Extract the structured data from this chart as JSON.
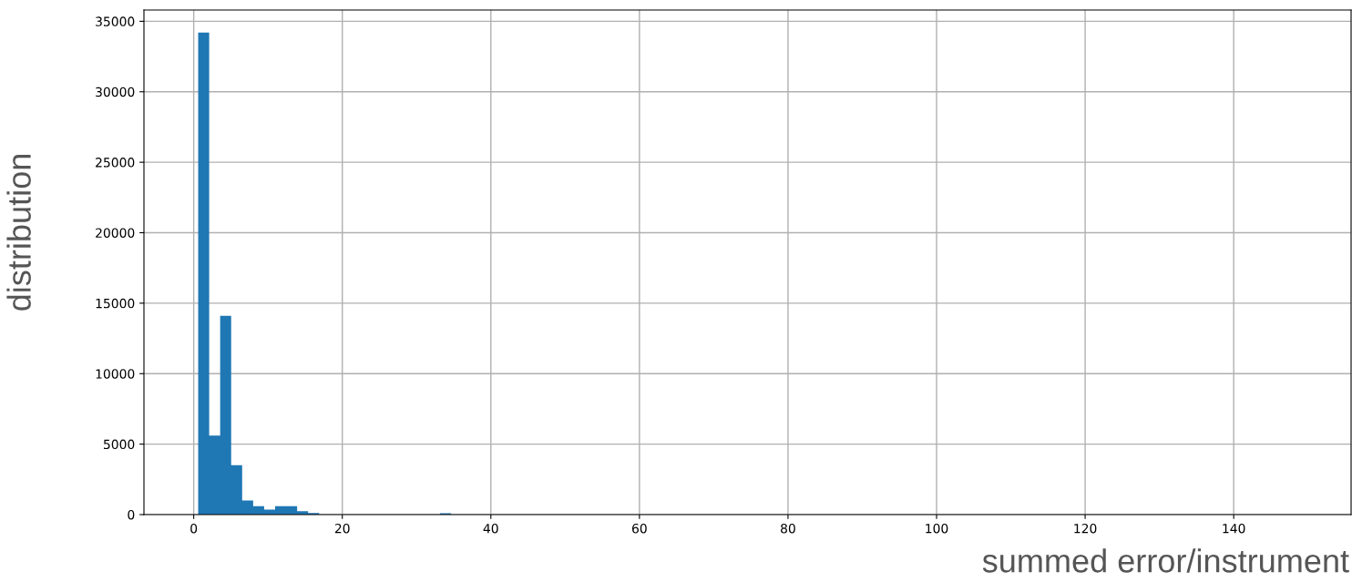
{
  "chart_data": {
    "type": "histogram",
    "xlabel": "summed error/instrument",
    "ylabel": "distribution",
    "color": "#1f77b4",
    "bins": [
      0.6,
      2.08,
      3.56,
      5.04,
      6.52,
      8.0,
      9.48,
      10.96,
      12.44,
      13.92,
      15.4,
      16.88,
      18.36,
      19.84,
      21.32,
      22.8,
      24.28,
      25.76,
      27.24,
      28.72,
      30.2,
      31.68,
      33.16,
      34.64
    ],
    "values": [
      34200,
      5600,
      14100,
      3500,
      1000,
      600,
      350,
      600,
      600,
      250,
      120,
      0,
      0,
      0,
      0,
      0,
      0,
      0,
      0,
      0,
      0,
      0,
      100
    ],
    "xlim": [
      -6.7,
      155.8
    ],
    "xticks": [
      0,
      20,
      40,
      60,
      80,
      100,
      120,
      140
    ],
    "ylim": [
      0,
      35800
    ],
    "yticks": [
      0,
      5000,
      10000,
      15000,
      20000,
      25000,
      30000,
      35000
    ],
    "grid": true
  }
}
